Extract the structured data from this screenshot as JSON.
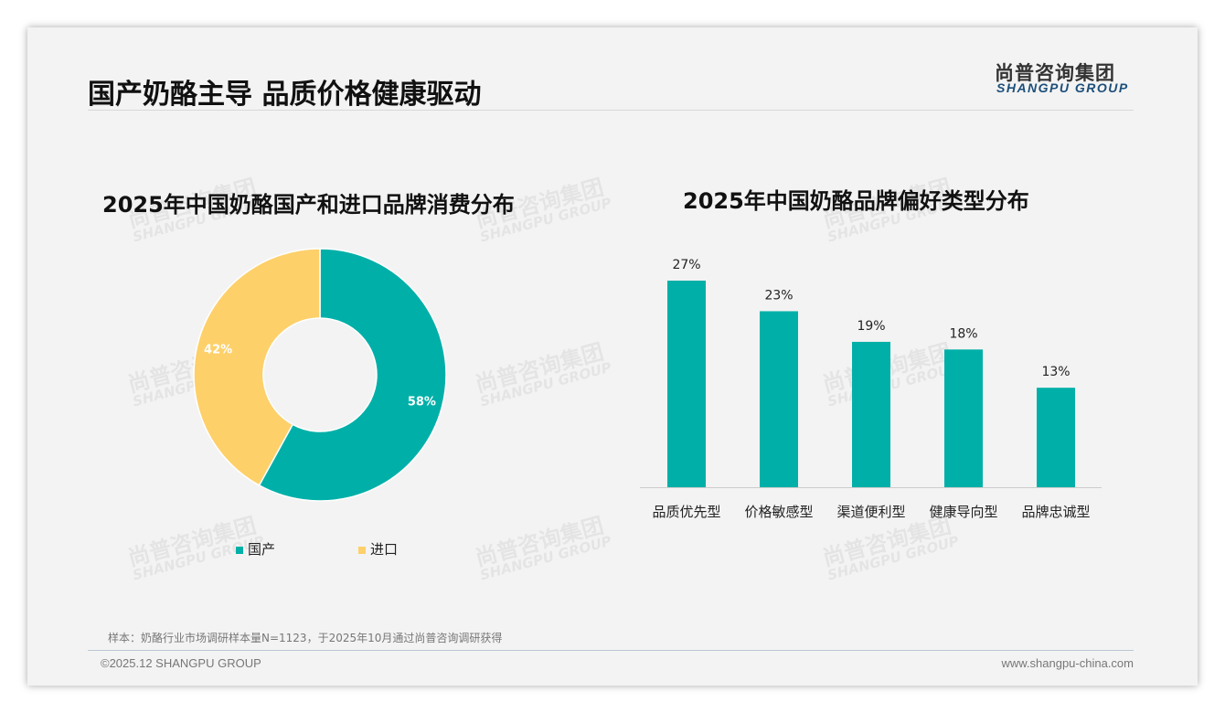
{
  "header": {
    "title": "国产奶酪主导 品质价格健康驱动",
    "logo_cn": "尚普咨询集团",
    "logo_en": "SHANGPU GROUP"
  },
  "watermark": {
    "cn": "尚普咨询集团",
    "en": "SHANGPU GROUP"
  },
  "chart_data": [
    {
      "type": "pie",
      "title": "2025年中国奶酪国产和进口品牌消费分布",
      "categories": [
        "国产",
        "进口"
      ],
      "values": [
        58,
        42
      ],
      "labels": [
        "58%",
        "42%"
      ],
      "colors": [
        "#00b0a8",
        "#fdd06a"
      ],
      "donut": true,
      "legend": "bottom"
    },
    {
      "type": "bar",
      "title": "2025年中国奶酪品牌偏好类型分布",
      "categories": [
        "品质优先型",
        "价格敏感型",
        "渠道便利型",
        "健康导向型",
        "品牌忠诚型"
      ],
      "values": [
        27,
        23,
        19,
        18,
        13
      ],
      "labels": [
        "27%",
        "23%",
        "19%",
        "18%",
        "13%"
      ],
      "color": "#00b0a8",
      "ylim": [
        0,
        30
      ],
      "grid": false
    }
  ],
  "footer": {
    "note": "样本：奶酪行业市场调研样本量N=1123，于2025年10月通过尚普咨询调研获得",
    "copyright": "©2025.12 SHANGPU GROUP",
    "url": "www.shangpu-china.com"
  }
}
